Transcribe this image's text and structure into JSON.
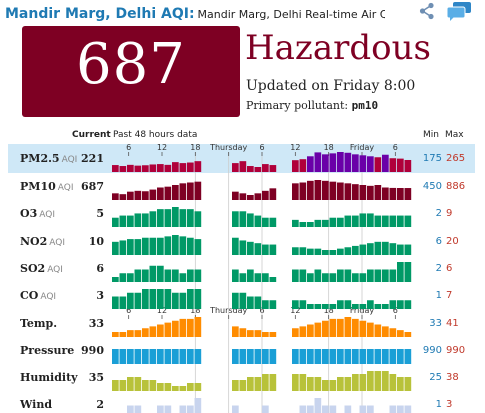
{
  "header": {
    "city": "Mandir Marg, Delhi AQI:",
    "subtitle": "Mandir Marg, Delhi Real-time Air Qualit",
    "icons": [
      "share-icon",
      "chat-icon"
    ]
  },
  "aqi": {
    "value": "687",
    "level": "Hazardous",
    "updated": "Updated on Friday 8:00",
    "pollutant_label": "Primary pollutant:",
    "pollutant": "pm10",
    "color": "#7e0023"
  },
  "table": {
    "current_label": "Current",
    "past_label": "Past 48 hours data",
    "min_label": "Min",
    "max_label": "Max",
    "axis": {
      "ticks": [
        "6",
        "12",
        "18",
        "Thursday",
        "6",
        "12",
        "18",
        "Friday",
        "6"
      ],
      "tick_hours": [
        6,
        12,
        18,
        24,
        30,
        36,
        42,
        48,
        54
      ],
      "start_hour": 3,
      "end_hour": 57,
      "gaps": [
        [
          18.5,
          23.5
        ],
        [
          31.5,
          34.5
        ]
      ]
    },
    "rows": [
      {
        "name": "PM2.5",
        "unit": "AQI",
        "current": "221",
        "min": "175",
        "max": "265",
        "color": "#b0003a",
        "color_hi": "#6a00a8",
        "highlight": true,
        "values": [
          195,
          190,
          196,
          192,
          194,
          198,
          200,
          196,
          210,
          205,
          208,
          215,
          210,
          205,
          212,
          208,
          205,
          215,
          190,
          185,
          200,
          195,
          205,
          215,
          220,
          225,
          240,
          260,
          250,
          255,
          262,
          258,
          250,
          245,
          240,
          235,
          248,
          230,
          228,
          221
        ]
      },
      {
        "name": "PM10",
        "unit": "AQI",
        "current": "687",
        "min": "450",
        "max": "886",
        "color": "#7e0023",
        "values": [
          560,
          540,
          600,
          620,
          610,
          650,
          700,
          720,
          760,
          800,
          820,
          840,
          780,
          740,
          700,
          640,
          600,
          560,
          520,
          560,
          620,
          680,
          720,
          760,
          800,
          820,
          860,
          880,
          860,
          840,
          820,
          800,
          780,
          760,
          740,
          760,
          700,
          690,
          688,
          687
        ]
      },
      {
        "name": "O3",
        "unit": "AQI",
        "current": "5",
        "min": "2",
        "max": "9",
        "color": "#009966",
        "values": [
          4,
          5,
          5,
          6,
          6,
          7,
          8,
          8,
          9,
          8,
          8,
          7,
          9,
          9,
          8,
          8,
          7,
          7,
          6,
          5,
          4,
          4,
          3,
          3,
          3,
          2,
          2,
          3,
          3,
          4,
          4,
          5,
          5,
          6,
          6,
          5,
          5,
          5,
          5,
          5
        ]
      },
      {
        "name": "NO2",
        "unit": "AQI",
        "current": "10",
        "min": "6",
        "max": "20",
        "color": "#009966",
        "values": [
          12,
          13,
          14,
          14,
          15,
          15,
          15,
          16,
          17,
          16,
          15,
          14,
          15,
          16,
          17,
          16,
          15,
          13,
          12,
          11,
          10,
          10,
          9,
          9,
          8,
          8,
          7,
          7,
          6,
          6,
          7,
          8,
          9,
          10,
          11,
          12,
          12,
          11,
          10,
          10
        ]
      },
      {
        "name": "SO2",
        "unit": "AQI",
        "current": "6",
        "min": "2",
        "max": "6",
        "color": "#009966",
        "values": [
          2,
          3,
          3,
          4,
          4,
          5,
          5,
          4,
          4,
          3,
          4,
          4,
          3,
          4,
          5,
          4,
          4,
          3,
          4,
          3,
          3,
          2,
          3,
          3,
          4,
          4,
          3,
          4,
          3,
          3,
          4,
          4,
          3,
          3,
          4,
          4,
          4,
          4,
          6,
          6
        ]
      },
      {
        "name": "CO",
        "unit": "AQI",
        "current": "3",
        "min": "1",
        "max": "7",
        "color": "#009966",
        "values": [
          4,
          4,
          5,
          5,
          6,
          6,
          6,
          6,
          5,
          5,
          6,
          6,
          6,
          5,
          6,
          5,
          5,
          5,
          4,
          4,
          3,
          3,
          3,
          2,
          3,
          3,
          2,
          2,
          2,
          2,
          3,
          3,
          2,
          2,
          3,
          2,
          2,
          3,
          3,
          3
        ]
      },
      {
        "name": "Temp.",
        "unit": "",
        "current": "33",
        "min": "33",
        "max": "41",
        "color": "#ff8c00",
        "values": [
          33,
          33,
          34,
          34,
          35,
          36,
          37,
          38,
          39,
          40,
          40,
          41,
          40,
          39,
          38,
          37,
          36,
          35,
          34,
          34,
          33,
          33,
          33,
          34,
          35,
          36,
          37,
          38,
          39,
          40,
          40,
          41,
          40,
          39,
          38,
          37,
          36,
          35,
          34,
          33
        ]
      },
      {
        "name": "Pressure",
        "unit": "",
        "current": "990",
        "min": "990",
        "max": "990",
        "color": "#1a9fd6",
        "values": [
          990,
          990,
          990,
          990,
          990,
          990,
          990,
          990,
          990,
          990,
          990,
          990,
          990,
          990,
          990,
          990,
          990,
          990,
          990,
          990,
          990,
          990,
          990,
          990,
          990,
          990,
          990,
          990,
          990,
          990,
          990,
          990,
          990,
          990,
          990,
          990,
          990,
          990,
          990,
          990
        ]
      },
      {
        "name": "Humidity",
        "unit": "",
        "current": "35",
        "min": "25",
        "max": "38",
        "color": "#b8c23a",
        "values": [
          34,
          34,
          35,
          35,
          34,
          34,
          33,
          33,
          32,
          32,
          33,
          33,
          34,
          34,
          35,
          35,
          34,
          34,
          35,
          35,
          36,
          36,
          37,
          37,
          36,
          36,
          35,
          35,
          34,
          34,
          35,
          35,
          36,
          36,
          37,
          37,
          37,
          36,
          35,
          35
        ]
      },
      {
        "name": "Wind",
        "unit": "",
        "current": "2",
        "min": "1",
        "max": "3",
        "color": "#c8d4ee",
        "values": [
          1,
          1,
          2,
          2,
          1,
          1,
          2,
          2,
          1,
          2,
          2,
          3,
          2,
          2,
          1,
          2,
          2,
          1,
          1,
          1,
          2,
          1,
          2,
          2,
          1,
          2,
          2,
          3,
          2,
          2,
          1,
          2,
          1,
          2,
          2,
          1,
          1,
          2,
          2,
          2
        ]
      }
    ]
  }
}
